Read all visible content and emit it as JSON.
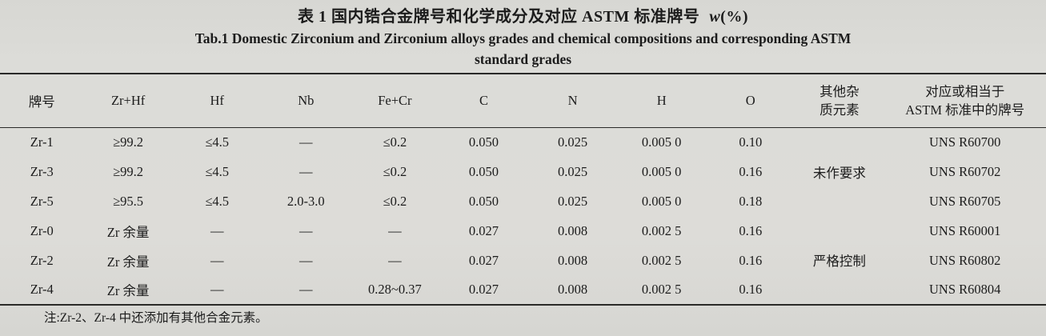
{
  "page": {
    "title_cn": "表 1 国内锆合金牌号和化学成分及对应 ASTM 标准牌号",
    "title_unit_symbol": "w",
    "title_unit_rest": "(%)",
    "title_en_line1": "Tab.1 Domestic Zirconium and Zirconium alloys grades and chemical compositions and corresponding ASTM",
    "title_en_line2": "standard grades",
    "note": "注:Zr-2、Zr-4 中还添加有其他合金元素。"
  },
  "table": {
    "headers": {
      "grade": "牌号",
      "zr_hf": "Zr+Hf",
      "hf": "Hf",
      "nb": "Nb",
      "fe_cr": "Fe+Cr",
      "c": "C",
      "n": "N",
      "h": "H",
      "o": "O",
      "impurity_line1": "其他杂",
      "impurity_line2": "质元素",
      "astm_line1": "对应或相当于",
      "astm_line2": "ASTM 标准中的牌号"
    },
    "impurity_groups": [
      {
        "label": "未作要求"
      },
      {
        "label": "严格控制"
      }
    ],
    "rows": [
      {
        "grade": "Zr-1",
        "zr_hf": "≥99.2",
        "hf": "≤4.5",
        "nb": "—",
        "fe_cr": "≤0.2",
        "c": "0.050",
        "n": "0.025",
        "h": "0.005 0",
        "o": "0.10",
        "astm": "UNS R60700"
      },
      {
        "grade": "Zr-3",
        "zr_hf": "≥99.2",
        "hf": "≤4.5",
        "nb": "—",
        "fe_cr": "≤0.2",
        "c": "0.050",
        "n": "0.025",
        "h": "0.005 0",
        "o": "0.16",
        "astm": "UNS R60702"
      },
      {
        "grade": "Zr-5",
        "zr_hf": "≥95.5",
        "hf": "≤4.5",
        "nb": "2.0-3.0",
        "fe_cr": "≤0.2",
        "c": "0.050",
        "n": "0.025",
        "h": "0.005 0",
        "o": "0.18",
        "astm": "UNS R60705"
      },
      {
        "grade": "Zr-0",
        "zr_hf": "Zr 余量",
        "hf": "—",
        "nb": "—",
        "fe_cr": "—",
        "c": "0.027",
        "n": "0.008",
        "h": "0.002 5",
        "o": "0.16",
        "astm": "UNS R60001"
      },
      {
        "grade": "Zr-2",
        "zr_hf": "Zr 余量",
        "hf": "—",
        "nb": "—",
        "fe_cr": "—",
        "c": "0.027",
        "n": "0.008",
        "h": "0.002 5",
        "o": "0.16",
        "astm": "UNS R60802"
      },
      {
        "grade": "Zr-4",
        "zr_hf": "Zr 余量",
        "hf": "—",
        "nb": "—",
        "fe_cr": "0.28~0.37",
        "c": "0.027",
        "n": "0.008",
        "h": "0.002 5",
        "o": "0.16",
        "astm": "UNS R60804"
      }
    ]
  }
}
